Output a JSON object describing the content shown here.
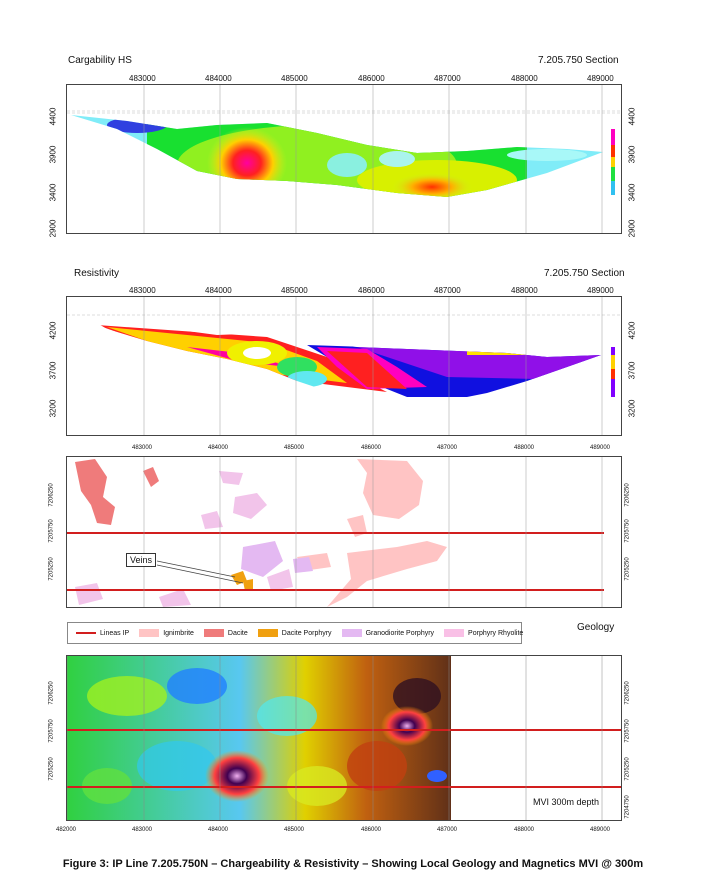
{
  "charge": {
    "title": "Cargability HS",
    "section": "7.205.750 Section",
    "xticks": [
      "483000",
      "484000",
      "485000",
      "486000",
      "487000",
      "488000",
      "489000"
    ],
    "yticks": [
      "4400",
      "3900",
      "3400",
      "2900"
    ]
  },
  "resist": {
    "title": "Resistivity",
    "section": "7.205.750 Section",
    "xticks": [
      "483000",
      "484000",
      "485000",
      "486000",
      "487000",
      "488000",
      "489000"
    ],
    "yticks": [
      "4200",
      "3700",
      "3200"
    ]
  },
  "geology": {
    "xticks": [
      "483000",
      "484000",
      "485000",
      "486000",
      "487000",
      "488000",
      "489000"
    ],
    "yticks": [
      "7206250",
      "7205750",
      "7205250"
    ],
    "veins_label": "Veins",
    "panel_label": "Geology"
  },
  "legend": {
    "items": [
      {
        "label": "Lineas IP",
        "color": "#d21e1e",
        "kind": "line"
      },
      {
        "label": "Ignimbrite",
        "color": "#ffc4c4",
        "kind": "box"
      },
      {
        "label": "Dacite",
        "color": "#ef7b7b",
        "kind": "box"
      },
      {
        "label": "Dacite Porphyry",
        "color": "#f0a010",
        "kind": "box"
      },
      {
        "label": "Granodiorite Porphyry",
        "color": "#e4b9f2",
        "kind": "box"
      },
      {
        "label": "Porphyry Rhyolite",
        "color": "#f9c0e6",
        "kind": "box"
      }
    ]
  },
  "mvi": {
    "xticks": [
      "482000",
      "483000",
      "484000",
      "485000",
      "486000",
      "487000",
      "488000",
      "489000"
    ],
    "yticks_left": [
      "7206250",
      "7205750",
      "7205250"
    ],
    "yticks_right": [
      "7206250",
      "7205750",
      "7205250",
      "7204750"
    ],
    "label": "MVI 300m depth"
  },
  "caption": "Figure 3: IP Line 7.205.750N – Chargeability & Resistivity – Showing Local Geology and Magnetics MVI @ 300m",
  "chart_data": [
    {
      "type": "heatmap",
      "title": "Cargability HS",
      "subtitle": "7.205.750 Section",
      "x_ticks": [
        483000,
        484000,
        485000,
        486000,
        487000,
        488000,
        489000
      ],
      "y_ticks": [
        4400,
        3900,
        3400,
        2900
      ]
    },
    {
      "type": "heatmap",
      "title": "Resistivity",
      "subtitle": "7.205.750 Section",
      "x_ticks": [
        483000,
        484000,
        485000,
        486000,
        487000,
        488000,
        489000
      ],
      "y_ticks": [
        4200,
        3700,
        3200
      ]
    },
    {
      "type": "heatmap",
      "title": "Geology",
      "x_ticks": [
        483000,
        484000,
        485000,
        486000,
        487000,
        488000,
        489000
      ],
      "y_ticks": [
        7206250,
        7205750,
        7205250
      ]
    },
    {
      "type": "heatmap",
      "title": "MVI 300m depth",
      "x_ticks": [
        482000,
        483000,
        484000,
        485000,
        486000,
        487000,
        488000,
        489000
      ],
      "y_ticks": [
        7206250,
        7205750,
        7205250,
        7204750
      ]
    }
  ]
}
